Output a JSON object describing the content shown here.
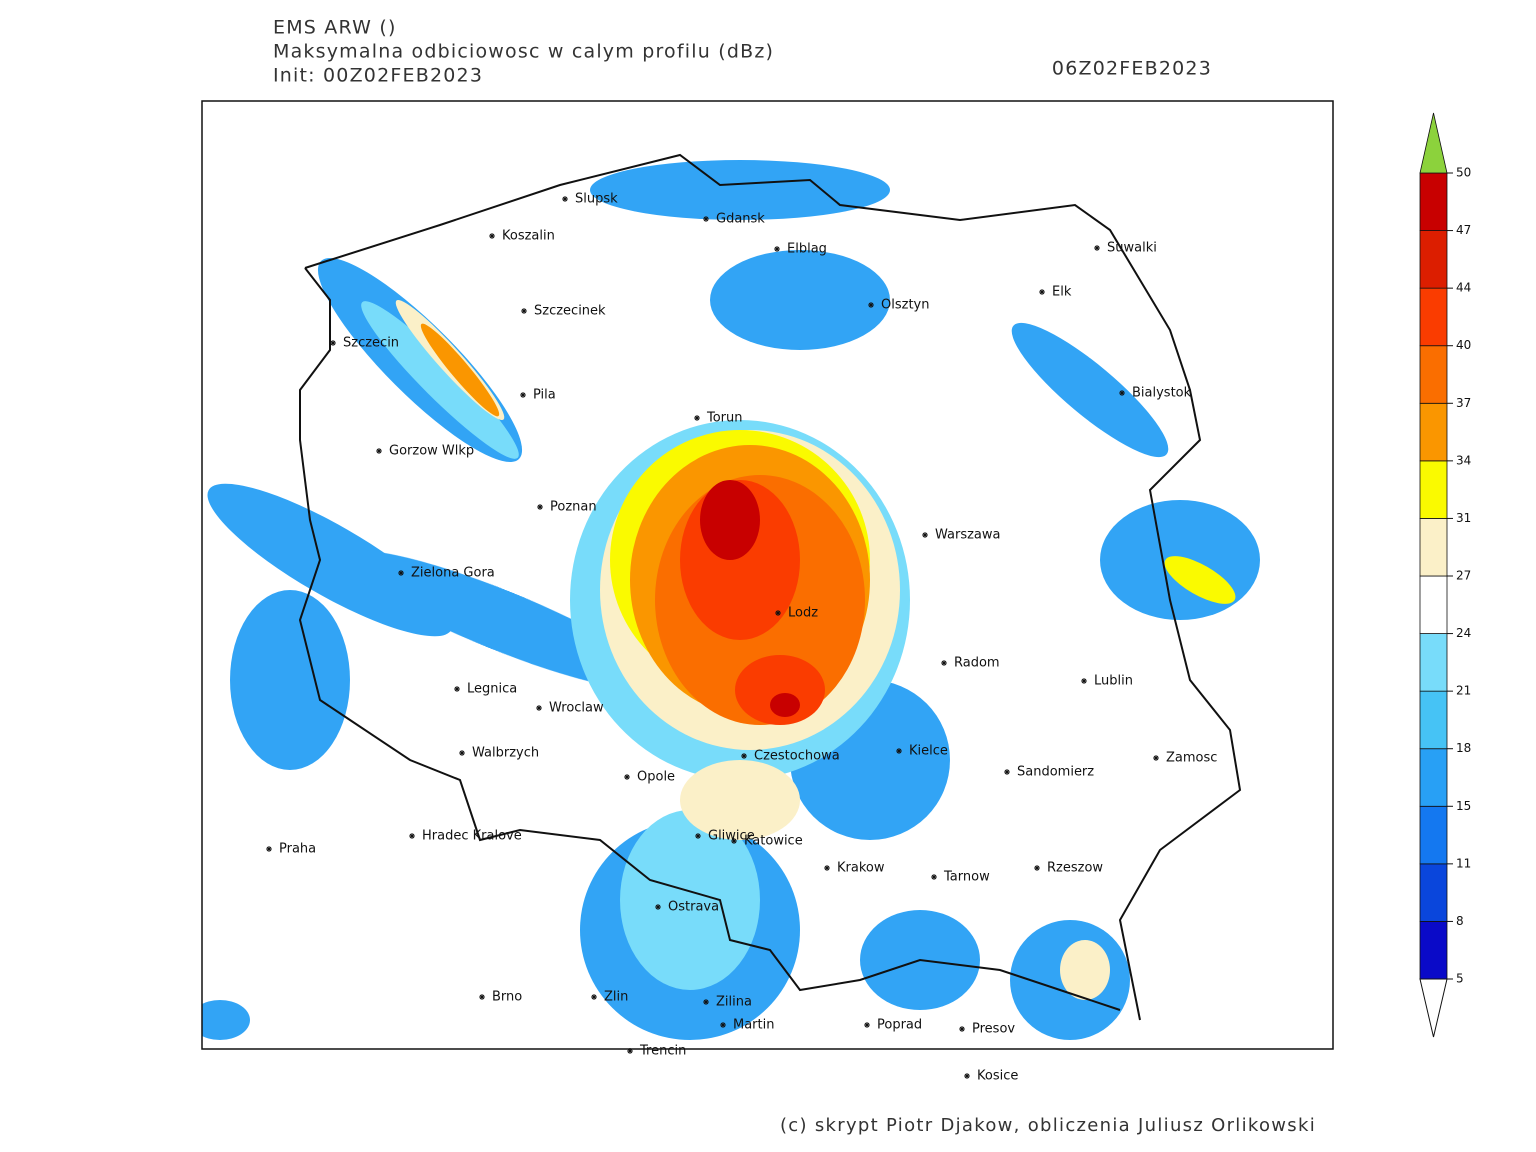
{
  "header": {
    "model": "EMS ARW ()",
    "field": "Maksymalna odbiciowosc w calym profilu (dBz)",
    "init": "Init: 00Z02FEB2023",
    "valid": "06Z02FEB2023"
  },
  "cities": [
    "Slupsk",
    "Gdansk",
    "Koszalin",
    "Elblag",
    "Szczecinek",
    "Olsztyn",
    "Elk",
    "Suwalki",
    "Szczecin",
    "Pila",
    "Torun",
    "Bialystok",
    "Gorzow Wlkp",
    "Poznan",
    "Warszawa",
    "Zielona Gora",
    "Lodz",
    "Radom",
    "Lublin",
    "Legnica",
    "Wroclaw",
    "Walbrzych",
    "Opole",
    "Czestochowa",
    "Kielce",
    "Sandomierz",
    "Zamosc",
    "Praha",
    "Hradec Kralove",
    "Gliwice",
    "Katowice",
    "Krakow",
    "Tarnow",
    "Rzeszow",
    "Ostrava",
    "Brno",
    "Zlin",
    "Zilina",
    "Martin",
    "Poprad",
    "Presov",
    "Trencin",
    "Kosice"
  ],
  "legend": {
    "ticks": [
      5,
      8,
      11,
      15,
      18,
      21,
      24,
      27,
      31,
      34,
      37,
      40,
      44,
      47,
      50
    ],
    "colors": [
      "#0a0ac8",
      "#0a46dc",
      "#1478f0",
      "#28a0f5",
      "#46c3f5",
      "#78dcfa",
      "#ffffff",
      "#fbf0c8",
      "#fafa00",
      "#fa9600",
      "#fa6e00",
      "#fa3c00",
      "#dc1e00",
      "#c80000"
    ],
    "over_color": "#8cd23c"
  },
  "credit": "(c) skrypt Piotr Djakow, obliczenia Juliusz Orlikowski"
}
